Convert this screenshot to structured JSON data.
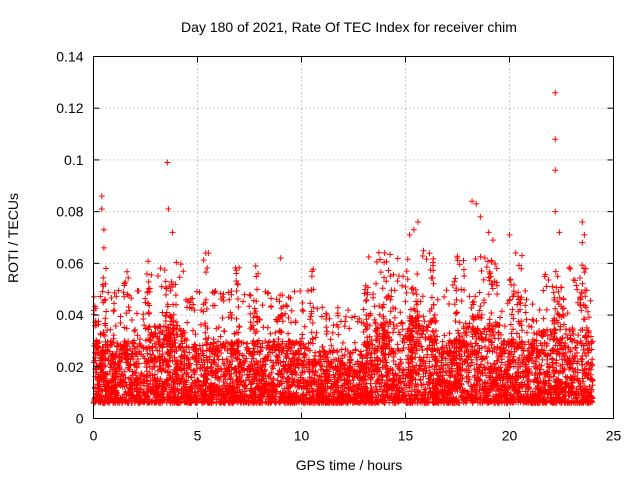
{
  "chart_data": {
    "type": "scatter",
    "title": "Day 180 of 2021, Rate Of TEC Index for receiver chim",
    "xlabel": "GPS time / hours",
    "ylabel": "ROTI / TECUs",
    "xlim": [
      0,
      25
    ],
    "ylim": [
      0,
      0.14
    ],
    "xticks": [
      0,
      5,
      10,
      15,
      20,
      25
    ],
    "yticks": [
      0,
      0.02,
      0.04,
      0.06,
      0.08,
      0.1,
      0.12,
      0.14
    ],
    "xtick_labels": [
      "0",
      "5",
      "10",
      "15",
      "20",
      "25"
    ],
    "ytick_labels": [
      "0",
      "0.02",
      "0.04",
      "0.06",
      "0.08",
      "0.1",
      "0.12",
      "0.14"
    ],
    "grid": true,
    "marker": "+",
    "marker_color": "#ff0000",
    "x_range_observed": [
      0,
      24
    ],
    "series": [
      {
        "name": "ROTI",
        "points": [
          [
            0.4,
            0.086
          ],
          [
            0.4,
            0.081
          ],
          [
            0.5,
            0.073
          ],
          [
            0.5,
            0.066
          ],
          [
            0.6,
            0.058
          ],
          [
            3.55,
            0.099
          ],
          [
            3.6,
            0.081
          ],
          [
            3.8,
            0.072
          ],
          [
            5.4,
            0.064
          ],
          [
            7.8,
            0.059
          ],
          [
            9.0,
            0.062
          ],
          [
            10.5,
            0.055
          ],
          [
            14.0,
            0.064
          ],
          [
            15.2,
            0.071
          ],
          [
            15.4,
            0.073
          ],
          [
            15.6,
            0.076
          ],
          [
            18.2,
            0.084
          ],
          [
            18.4,
            0.083
          ],
          [
            18.6,
            0.078
          ],
          [
            19.0,
            0.072
          ],
          [
            19.2,
            0.069
          ],
          [
            20.0,
            0.071
          ],
          [
            20.3,
            0.064
          ],
          [
            20.6,
            0.063
          ],
          [
            22.2,
            0.126
          ],
          [
            22.2,
            0.108
          ],
          [
            22.2,
            0.096
          ],
          [
            22.2,
            0.08
          ],
          [
            22.4,
            0.072
          ],
          [
            23.5,
            0.076
          ],
          [
            23.6,
            0.071
          ],
          [
            23.5,
            0.068
          ]
        ],
        "bands": [
          {
            "x_start": 0,
            "x_end": 24,
            "typical_low": 0.006,
            "typical_high": 0.03,
            "spread_high": 0.05
          }
        ]
      }
    ]
  }
}
